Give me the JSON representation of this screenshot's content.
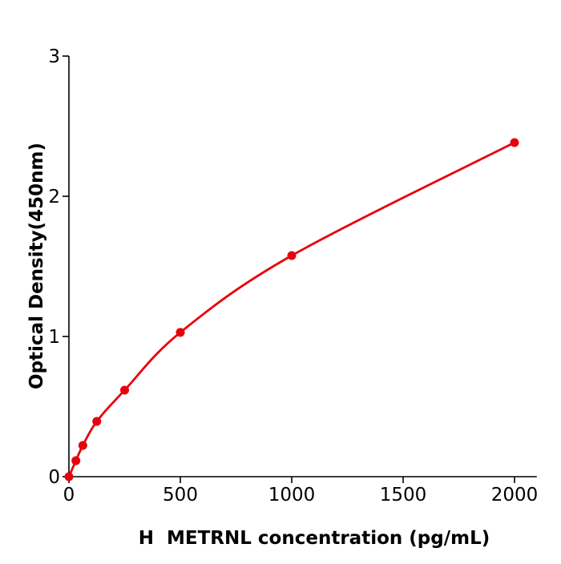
{
  "chart_data": {
    "type": "line",
    "title": "",
    "xlabel": "H  METRNL concentration (pg/mL)",
    "ylabel": "Optical Density(450nm)",
    "xlim": [
      0,
      2100
    ],
    "ylim": [
      0,
      3
    ],
    "xticks": [
      0,
      500,
      1000,
      1500,
      2000
    ],
    "yticks": [
      0,
      1,
      2,
      3
    ],
    "grid": false,
    "legend": "none",
    "series": [
      {
        "x": [
          0,
          31.25,
          62.5,
          125,
          250,
          500,
          1000,
          2000
        ],
        "y": [
          0.0,
          0.114,
          0.223,
          0.394,
          0.617,
          1.029,
          1.577,
          2.383
        ],
        "color": "#e8000b",
        "marker": "circle",
        "fit_curve": true
      }
    ]
  }
}
